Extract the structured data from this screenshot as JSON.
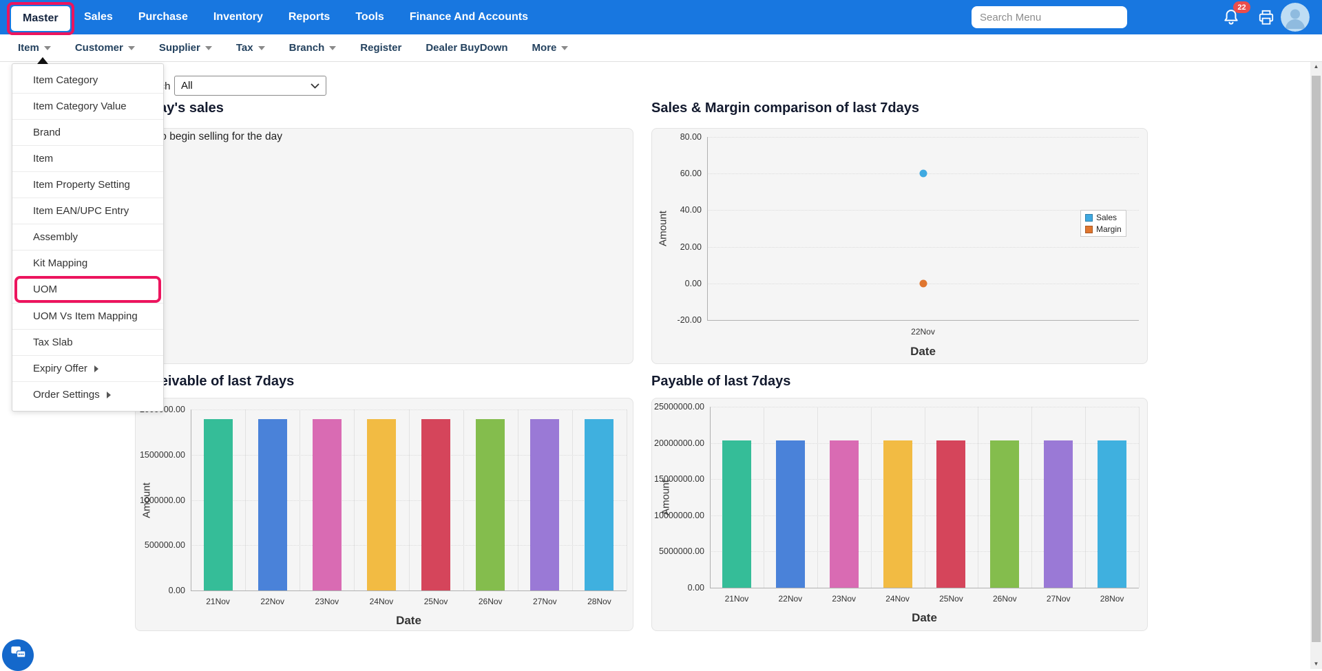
{
  "header": {
    "bg_color": "#1877E0",
    "annotation_color": "#EC155E",
    "tabs": [
      {
        "label": "Master",
        "active": true
      },
      {
        "label": "Sales"
      },
      {
        "label": "Purchase"
      },
      {
        "label": "Inventory"
      },
      {
        "label": "Reports"
      },
      {
        "label": "Tools"
      },
      {
        "label": "Finance And Accounts"
      }
    ],
    "search": {
      "placeholder": "Search Menu"
    },
    "notifications": {
      "count": "22",
      "badge_color": "#EB4D4B"
    }
  },
  "subnav": {
    "items": [
      {
        "label": "Item",
        "dropdown": true,
        "open": true
      },
      {
        "label": "Customer",
        "dropdown": true
      },
      {
        "label": "Supplier",
        "dropdown": true
      },
      {
        "label": "Tax",
        "dropdown": true
      },
      {
        "label": "Branch",
        "dropdown": true
      },
      {
        "label": "Register",
        "dropdown": false
      },
      {
        "label": "Dealer BuyDown",
        "dropdown": false
      },
      {
        "label": "More",
        "dropdown": true
      }
    ]
  },
  "item_menu": {
    "highlight_color": "#EC155E",
    "items": [
      {
        "label": "Item Category"
      },
      {
        "label": "Item Category Value"
      },
      {
        "label": "Brand"
      },
      {
        "label": "Item"
      },
      {
        "label": "Item Property Setting"
      },
      {
        "label": "Item EAN/UPC Entry"
      },
      {
        "label": "Assembly"
      },
      {
        "label": "Kit Mapping"
      },
      {
        "label": "UOM",
        "highlighted": true
      },
      {
        "label": "UOM Vs Item Mapping"
      },
      {
        "label": "Tax Slab"
      },
      {
        "label": "Expiry Offer",
        "submenu": true
      },
      {
        "label": "Order Settings",
        "submenu": true
      }
    ]
  },
  "content": {
    "filter": {
      "label": "Search",
      "value": "All"
    },
    "panels": {
      "today": {
        "title": "Today's sales",
        "message": "to begin selling for the day"
      }
    }
  },
  "chart_data": [
    {
      "id": "sales_margin",
      "type": "scatter",
      "title": "Sales & Margin comparison of last 7days",
      "xlabel": "Date",
      "ylabel": "Amount",
      "x": [
        "22Nov"
      ],
      "series": [
        {
          "name": "Sales",
          "color": "#3FA9E1",
          "values": [
            60
          ]
        },
        {
          "name": "Margin",
          "color": "#E0762F",
          "values": [
            0
          ]
        }
      ],
      "ylim": [
        -20,
        80
      ],
      "yticks": [
        "80.00",
        "60.00",
        "40.00",
        "20.00",
        "0.00",
        "-20.00"
      ],
      "grid": true,
      "legend_position": "right"
    },
    {
      "id": "receivable",
      "type": "bar",
      "title": "Receivable of last 7days",
      "xlabel": "Date",
      "ylabel": "Amount",
      "categories": [
        "21Nov",
        "22Nov",
        "23Nov",
        "24Nov",
        "25Nov",
        "26Nov",
        "27Nov",
        "28Nov"
      ],
      "values": [
        1890000,
        1890000,
        1890000,
        1890000,
        1890000,
        1890000,
        1890000,
        1890000
      ],
      "bar_colors": [
        "#35BD98",
        "#4A82D9",
        "#D96BB3",
        "#F2BB43",
        "#D5455B",
        "#84BD4D",
        "#9A79D6",
        "#3FB0DF"
      ],
      "ylim": [
        0,
        2000000
      ],
      "yticks": [
        "2000000.00",
        "1500000.00",
        "1000000.00",
        "500000.00",
        "0.00"
      ],
      "grid": true
    },
    {
      "id": "payable",
      "type": "bar",
      "title": "Payable of last 7days",
      "xlabel": "Date",
      "ylabel": "Amount",
      "categories": [
        "21Nov",
        "22Nov",
        "23Nov",
        "24Nov",
        "25Nov",
        "26Nov",
        "27Nov",
        "28Nov"
      ],
      "values": [
        20300000,
        20300000,
        20300000,
        20300000,
        20300000,
        20300000,
        20300000,
        20300000
      ],
      "bar_colors": [
        "#35BD98",
        "#4A82D9",
        "#D96BB3",
        "#F2BB43",
        "#D5455B",
        "#84BD4D",
        "#9A79D6",
        "#3FB0DF"
      ],
      "ylim": [
        0,
        25000000
      ],
      "yticks": [
        "25000000.00",
        "20000000.00",
        "15000000.00",
        "10000000.00",
        "5000000.00",
        "0.00"
      ],
      "grid": true
    }
  ]
}
